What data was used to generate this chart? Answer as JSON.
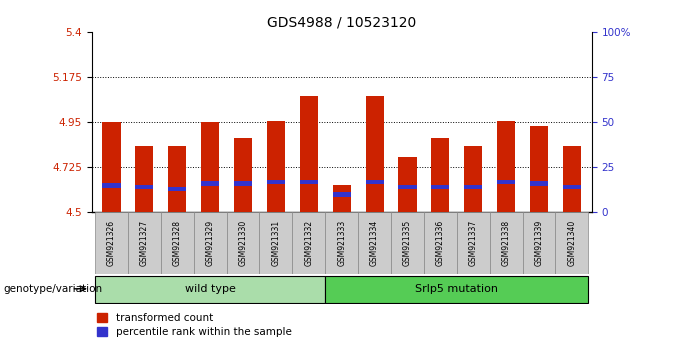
{
  "title": "GDS4988 / 10523120",
  "samples": [
    "GSM921326",
    "GSM921327",
    "GSM921328",
    "GSM921329",
    "GSM921330",
    "GSM921331",
    "GSM921332",
    "GSM921333",
    "GSM921334",
    "GSM921335",
    "GSM921336",
    "GSM921337",
    "GSM921338",
    "GSM921339",
    "GSM921340"
  ],
  "transformed_counts": [
    4.95,
    4.83,
    4.83,
    4.95,
    4.87,
    4.955,
    5.08,
    4.635,
    5.08,
    4.775,
    4.87,
    4.83,
    4.955,
    4.93,
    4.83
  ],
  "percentile_ranks": [
    15,
    14,
    13,
    16,
    16,
    17,
    17,
    10,
    17,
    14,
    14,
    14,
    17,
    16,
    14
  ],
  "ymin": 4.5,
  "ymax": 5.4,
  "yticks": [
    4.5,
    4.725,
    4.95,
    5.175,
    5.4
  ],
  "ytick_labels": [
    "4.5",
    "4.725",
    "4.95",
    "5.175",
    "5.4"
  ],
  "bar_color": "#CC2200",
  "percentile_color": "#3333CC",
  "bar_width": 0.55,
  "wild_type_count": 7,
  "genotype_label1": "wild type",
  "genotype_label2": "Srlp5 mutation",
  "xlabel_genotype": "genotype/variation",
  "legend_red": "transformed count",
  "legend_blue": "percentile rank within the sample",
  "background_color": "#ffffff",
  "tick_label_color_left": "#CC2200",
  "tick_label_color_right": "#3333CC",
  "wild_type_color": "#aaddaa",
  "mutation_color": "#55cc55",
  "xtick_bg_color": "#cccccc",
  "title_fontsize": 10
}
